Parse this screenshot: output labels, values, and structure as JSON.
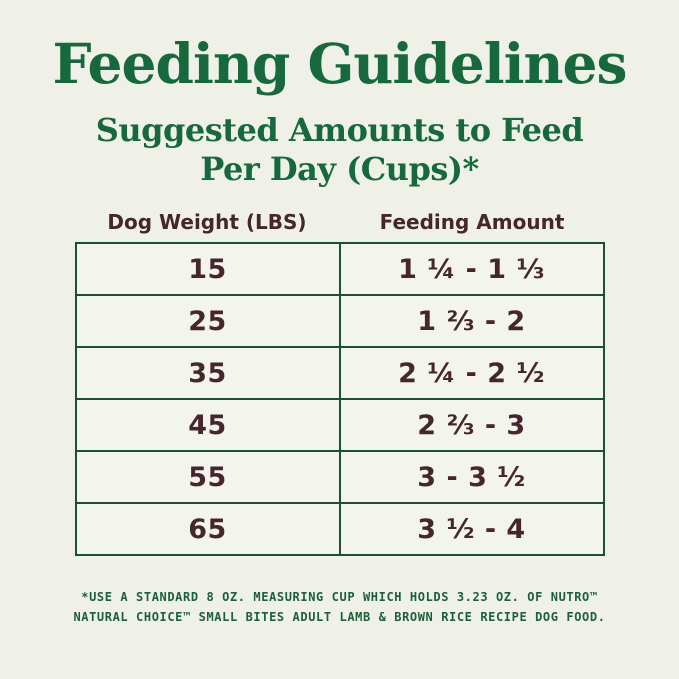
{
  "page": {
    "title": "Feeding Guidelines",
    "subtitle_line1": "Suggested Amounts to Feed",
    "subtitle_line2": "Per Day (Cups)*"
  },
  "table": {
    "headers": {
      "weight": "Dog Weight (LBS)",
      "amount": "Feeding Amount"
    },
    "rows": [
      {
        "weight": "15",
        "amount": "1 ¼ - 1 ⅓"
      },
      {
        "weight": "25",
        "amount": "1 ⅔ - 2"
      },
      {
        "weight": "35",
        "amount": "2 ¼ - 2 ½"
      },
      {
        "weight": "45",
        "amount": "2 ⅔ - 3"
      },
      {
        "weight": "55",
        "amount": "3 - 3 ½"
      },
      {
        "weight": "65",
        "amount": "3 ½ - 4"
      }
    ]
  },
  "footnote": {
    "line1": "*USE A STANDARD 8 OZ. MEASURING CUP WHICH HOLDS 3.23 OZ. OF NUTRO™",
    "line2": "NATURAL CHOICE™ SMALL BITES ADULT LAMB & BROWN RICE RECIPE DOG FOOD."
  },
  "colors": {
    "background": "#eff1e8",
    "heading_green": "#17693d",
    "border_green": "#1d4f34",
    "footnote_green": "#1d5e3c",
    "table_text_brown": "#46262e"
  }
}
